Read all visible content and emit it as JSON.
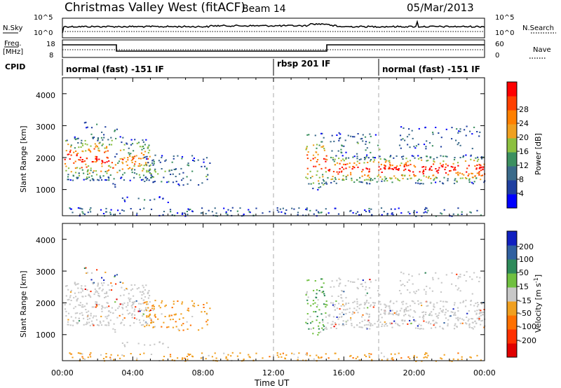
{
  "header": {
    "station": "Christmas Valley West (fitACF)",
    "beam": "Beam 14",
    "date": "05/Mar/2013"
  },
  "nsky_panel": {
    "left_label": "N.Sky",
    "left_ticks": [
      "10^5",
      "10^0"
    ],
    "right_ticks": [
      "10^5",
      "10^0"
    ],
    "right_label": "N.Search"
  },
  "freq_panel": {
    "left_label_1": "Freq.",
    "left_label_2": "[MHz]",
    "left_ticks": [
      "18",
      "8"
    ],
    "right_ticks": [
      "60",
      "0"
    ],
    "right_label": "Nave"
  },
  "cpid": {
    "label": "CPID",
    "segments": [
      {
        "name": "normal (fast) -151 IF",
        "start": 0
      },
      {
        "name": "rbsp 201 IF",
        "start": 12
      },
      {
        "name": "normal (fast) -151 IF",
        "start": 18
      }
    ]
  },
  "chart_data": [
    {
      "type": "heatmap",
      "title": "Power",
      "ylabel": "Slant Range [km]",
      "ylim": [
        180,
        4500
      ],
      "yticks": [
        "1000",
        "2000",
        "3000",
        "4000"
      ],
      "xlim": [
        0,
        24
      ],
      "colorbar": {
        "label": "Power [dB]",
        "ticks": [
          "4",
          "8",
          "12",
          "16",
          "20",
          "24",
          "28"
        ],
        "range": [
          0,
          30
        ],
        "colors": [
          "#0000ff",
          "#1f3fa0",
          "#3a6a8a",
          "#3c9060",
          "#8cc040",
          "#f0a020",
          "#ff8000",
          "#ff4000",
          "#ff0000"
        ]
      }
    },
    {
      "type": "heatmap",
      "title": "Velocity",
      "ylabel": "Slant Range [km]",
      "ylim": [
        180,
        4500
      ],
      "yticks": [
        "1000",
        "2000",
        "3000",
        "4000"
      ],
      "xlim": [
        0,
        24
      ],
      "xlabel": "Time UT",
      "xticks": [
        "00:00",
        "04:00",
        "08:00",
        "12:00",
        "16:00",
        "20:00",
        "00:00"
      ],
      "colorbar": {
        "label_main": "Velocity [m s",
        "label_exp": "-1",
        "label_end": "]",
        "ticks": [
          "200",
          "100",
          "50",
          "15",
          "-15",
          "-50",
          "-100",
          "-200"
        ],
        "colors": [
          "#1020c0",
          "#3060a0",
          "#2e8a5a",
          "#70c040",
          "#c8c8c8",
          "#f0a020",
          "#ff7000",
          "#ff3000",
          "#e00000"
        ]
      }
    }
  ]
}
